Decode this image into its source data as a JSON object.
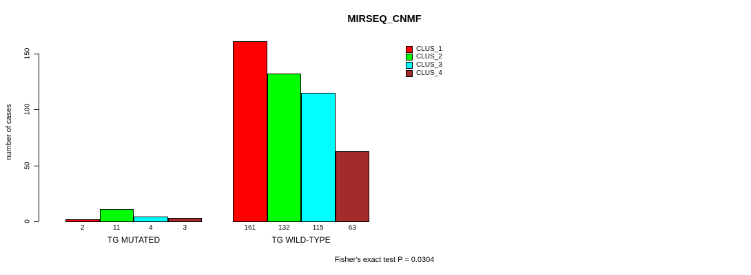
{
  "chart_data": {
    "type": "bar",
    "title": "MIRSEQ_CNMF",
    "categories": [
      "TG MUTATED",
      "TG WILD-TYPE"
    ],
    "series": [
      {
        "name": "CLUS_1",
        "color": "#ff0000",
        "values": [
          2,
          161
        ]
      },
      {
        "name": "CLUS_2",
        "color": "#00ff00",
        "values": [
          11,
          132
        ]
      },
      {
        "name": "CLUS_3",
        "color": "#00ffff",
        "values": [
          4,
          115
        ]
      },
      {
        "name": "CLUS_4",
        "color": "#a52a2a",
        "values": [
          3,
          63
        ]
      }
    ],
    "xlabel": "",
    "ylabel": "number of cases",
    "yticks": [
      0,
      50,
      100,
      150
    ],
    "ylim": [
      0,
      161
    ],
    "grid": false,
    "legend_position": "top-right",
    "bar_value_labels": true,
    "annotation": "Fisher's exact test P = 0.0304",
    "text_color": "#000000",
    "background_color": "#ffffff"
  }
}
